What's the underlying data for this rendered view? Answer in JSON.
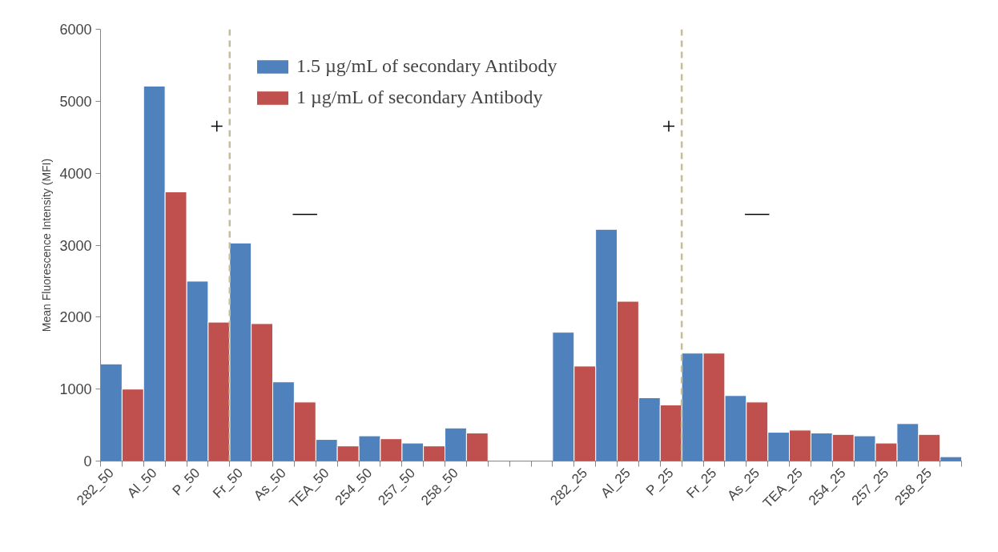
{
  "chart_data": {
    "type": "bar",
    "ylabel": "Mean Fluorescence Intensity (MFI)",
    "categories": [
      "282_50",
      null,
      "Al_50",
      null,
      "P_50",
      null,
      "Fr_50",
      null,
      "As_50",
      null,
      "TEA_50",
      null,
      "254_50",
      null,
      "257_50",
      null,
      "258_50",
      null,
      null,
      null,
      null,
      null,
      "282_25",
      null,
      "Al_25",
      null,
      "P_25",
      null,
      "Fr_25",
      null,
      "As_25",
      null,
      "TEA_25",
      null,
      "254_25",
      null,
      "257_25",
      null,
      "258_25",
      null
    ],
    "series": [
      {
        "name": "1.5 µg/mL of secondary Antibody",
        "color": "#4f81bd",
        "values": [
          1350,
          null,
          5210,
          null,
          2500,
          null,
          3030,
          null,
          1100,
          null,
          300,
          null,
          350,
          null,
          250,
          null,
          460,
          null,
          null,
          null,
          null,
          1790,
          null,
          3220,
          null,
          880,
          null,
          1500,
          null,
          910,
          null,
          400,
          null,
          390,
          null,
          350,
          null,
          520,
          null,
          60
        ]
      },
      {
        "name": "1 µg/mL of secondary Antibody",
        "color": "#c0504d",
        "values": [
          null,
          1000,
          null,
          3740,
          null,
          1930,
          null,
          1910,
          null,
          820,
          null,
          210,
          null,
          310,
          null,
          210,
          null,
          390,
          null,
          null,
          null,
          null,
          1320,
          null,
          2220,
          null,
          780,
          null,
          1500,
          null,
          820,
          null,
          430,
          null,
          370,
          null,
          250,
          null,
          370,
          null
        ]
      }
    ],
    "ylim": [
      0,
      6000
    ],
    "yticks": [
      0,
      1000,
      2000,
      3000,
      4000,
      5000,
      6000
    ],
    "grid": false,
    "legend": "top",
    "annotations": [
      "+",
      "—",
      "+",
      "—"
    ]
  }
}
